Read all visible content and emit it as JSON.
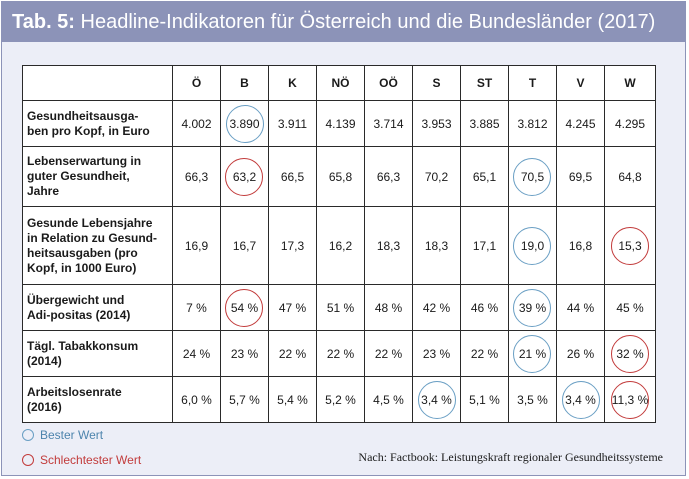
{
  "title": {
    "number": "Tab. 5:",
    "text": " Headline-Indikatoren für Österreich und die Bundesländer (2017)"
  },
  "table": {
    "columns": [
      "Ö",
      "B",
      "K",
      "NÖ",
      "OÖ",
      "S",
      "ST",
      "T",
      "V",
      "W"
    ],
    "rows": [
      {
        "label": "Gesundheitsausga-\nben pro Kopf, in Euro",
        "values": [
          "4.002",
          "3.890",
          "3.911",
          "4.139",
          "3.714",
          "3.953",
          "3.885",
          "3.812",
          "4.245",
          "4.295"
        ],
        "marks": [
          "",
          "best",
          "",
          "",
          "",
          "",
          "",
          "",
          "",
          ""
        ]
      },
      {
        "label": "Lebenserwartung in\nguter Gesundheit,\nJahre",
        "values": [
          "66,3",
          "63,2",
          "66,5",
          "65,8",
          "66,3",
          "70,2",
          "65,1",
          "70,5",
          "69,5",
          "64,8"
        ],
        "marks": [
          "",
          "worst",
          "",
          "",
          "",
          "",
          "",
          "best",
          "",
          ""
        ]
      },
      {
        "label": "Gesunde Lebensjahre\nin Relation zu Gesund-\nheitsausgaben (pro\nKopf, in 1000 Euro)",
        "values": [
          "16,9",
          "16,7",
          "17,3",
          "16,2",
          "18,3",
          "18,3",
          "17,1",
          "19,0",
          "16,8",
          "15,3"
        ],
        "marks": [
          "",
          "",
          "",
          "",
          "",
          "",
          "",
          "best",
          "",
          "worst"
        ]
      },
      {
        "label": "Übergewicht und\nAdi-positas (2014)",
        "values": [
          "7 %",
          "54 %",
          "47 %",
          "51 %",
          "48 %",
          "42 %",
          "46 %",
          "39 %",
          "44 %",
          "45 %"
        ],
        "marks": [
          "",
          "worst",
          "",
          "",
          "",
          "",
          "",
          "best",
          "",
          ""
        ]
      },
      {
        "label": "Tägl. Tabakkonsum\n(2014)",
        "values": [
          "24 %",
          "23 %",
          "22 %",
          "22 %",
          "22 %",
          "23 %",
          "22 %",
          "21 %",
          "26 %",
          "32 %"
        ],
        "marks": [
          "",
          "",
          "",
          "",
          "",
          "",
          "",
          "best",
          "",
          "worst"
        ]
      },
      {
        "label": "Arbeitslosenrate\n(2016)",
        "values": [
          "6,0 %",
          "5,7 %",
          "5,4 %",
          "5,2 %",
          "4,5 %",
          "3,4 %",
          "5,1 %",
          "3,5 %",
          "3,4 %",
          "11,3 %"
        ],
        "marks": [
          "",
          "",
          "",
          "",
          "",
          "best",
          "",
          "",
          "best",
          "worst"
        ]
      }
    ]
  },
  "legend": {
    "best": "Bester Wert",
    "worst": "Schlechtester Wert"
  },
  "source": "Nach: Factbook: Leistungskraft regionaler Gesundheitssysteme",
  "colors": {
    "title_bar": "#8c93b8",
    "best": "#6a9fc4",
    "worst": "#c23b3b"
  }
}
